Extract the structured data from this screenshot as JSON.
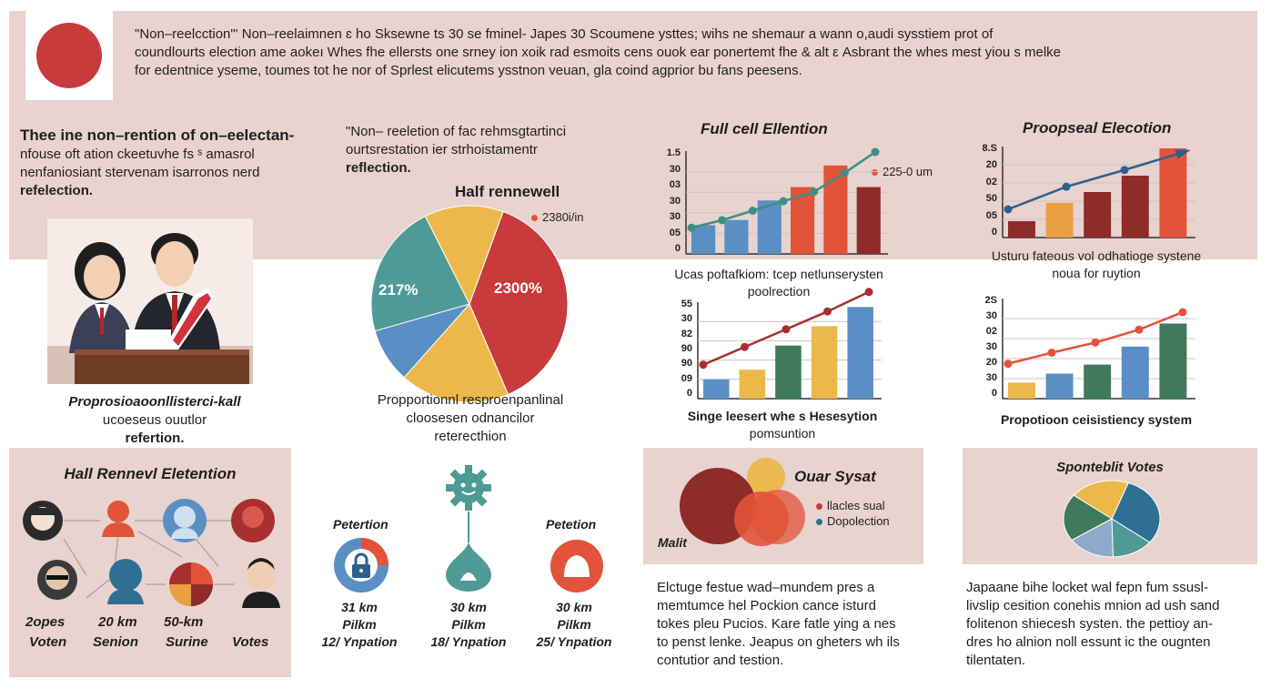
{
  "colors": {
    "red": "#c83a3c",
    "darkred": "#8e2c2a",
    "orange": "#e2533a",
    "yellow": "#ecb84a",
    "blue": "#5a8fc5",
    "teal": "#4f9a94",
    "green": "#3f7a5a",
    "navy": "#2e5f8f",
    "band": "#e8d3cf"
  },
  "header": {
    "flag_icon": "japan-flag-icon",
    "text_line1": "\"Non–reelcction\"' Non–reelaimnen ɛ ho Sksewne ts 30 se fminel- Japes 30 Scoumene ysttes; wihs ne shemaur a wann o,audi sysstiem prot of",
    "text_line2": "coundlourts election ame aokeı Whes fhe ellersts one srney ion xoik rad esmoits cens ouok ear ponertemt fhe & alt ε Asbrant the whes mest yiou s melke",
    "text_line3": "for edentnice yseme, toumes tot he nor of Sprlest elicutems ysstnon veuan, gla coind agprior bu fans peesens."
  },
  "intro": {
    "heading": "Thee ine non–rention of on–eelectan-",
    "line2": "nfouse oft ation ckeetuvhe fs ˢ amasrol",
    "line3": "nenfaniosiant stervenam isarronos nerd",
    "line4": "refelection."
  },
  "illustration_caption": [
    "Proprosioaoonllisterci-kall",
    "ucoeseus ouutlor",
    "refertion."
  ],
  "pie_section": {
    "intro": [
      "\"Non– reeletion of fac rehmsgtartinci",
      "ourtsrestation ier strhoistamentr",
      "reflection."
    ],
    "title": "Half rennewell",
    "legend": "2380i/in",
    "label_left": "217%",
    "label_right": "2300%",
    "chart_data": {
      "type": "pie",
      "slices": [
        {
          "label": "217%",
          "value": 38,
          "color": "#c83a3c"
        },
        {
          "label": "",
          "value": 18,
          "color": "#ecb84a"
        },
        {
          "label": "",
          "value": 9,
          "color": "#5a8fc5"
        },
        {
          "label": "2300%",
          "value": 22,
          "color": "#4f9a94"
        },
        {
          "label": "",
          "value": 13,
          "color": "#ecb84a"
        }
      ]
    },
    "caption": [
      "Propportionnl resproenpanlinal",
      "cloosesen odnancilor",
      "reterecthion"
    ]
  },
  "charts": [
    {
      "id": "full-cell",
      "title": "Full cell Ellention",
      "legend": "225-0 um",
      "ticks": [
        "1.5",
        "30",
        "03",
        "30",
        "30",
        "05",
        "0"
      ],
      "chart_data": {
        "type": "bar",
        "values": [
          28,
          33,
          52,
          65,
          86,
          65
        ],
        "colors": [
          "#5a8fc5",
          "#5a8fc5",
          "#5a8fc5",
          "#e2533a",
          "#e2533a",
          "#8e2c2a"
        ],
        "line": [
          20,
          28,
          38,
          48,
          58,
          78,
          100
        ],
        "line_color": "#3e8f83"
      },
      "caption": [
        "Ucas poftafkiom: tcep netlunserysten",
        "poolrection"
      ]
    },
    {
      "id": "proposal",
      "title": "Proopseal Elecotion",
      "ticks": [
        "8.S",
        "20",
        "02",
        "50",
        "05",
        "0"
      ],
      "chart_data": {
        "type": "bar",
        "values": [
          18,
          38,
          50,
          68,
          98
        ],
        "colors": [
          "#8e2c2a",
          "#e8a043",
          "#8e2c2a",
          "#8e2c2a",
          "#e2533a"
        ],
        "line": [
          25,
          52,
          72,
          93
        ],
        "line_color": "#2e5f8f",
        "arrow": true
      },
      "caption": [
        "Usturu fateous vol odhatioge systene",
        "noua for ruytion"
      ]
    },
    {
      "id": "single",
      "title": "",
      "ticks": [
        "55",
        "30",
        "82",
        "90",
        "90",
        "09",
        "0"
      ],
      "chart_data": {
        "type": "bar",
        "values": [
          20,
          30,
          55,
          75,
          95
        ],
        "colors": [
          "#5a8fc5",
          "#ecb84a",
          "#3f7a5a",
          "#ecb84a",
          "#5a8fc5"
        ],
        "line": [
          30,
          50,
          70,
          90,
          112
        ],
        "line_color": "#a82f2f"
      },
      "caption": [
        "Singe leesert whe s Hesesytion",
        "pomsuntion"
      ]
    },
    {
      "id": "proportion",
      "title": "",
      "ticks": [
        "2S",
        "30",
        "02",
        "30",
        "20",
        "30",
        "0"
      ],
      "chart_data": {
        "type": "bar",
        "values": [
          16,
          25,
          34,
          52,
          75
        ],
        "colors": [
          "#ecb84a",
          "#5a8fc5",
          "#3f7a5a",
          "#5a8fc5",
          "#3f7a5a"
        ],
        "line": [
          30,
          42,
          53,
          67,
          86
        ],
        "line_color": "#e2533a"
      },
      "caption": [
        "Propotioon ceisistiency system"
      ]
    }
  ],
  "hall": {
    "title": "Hall Rennevl Eletention",
    "people": [
      {
        "icon": "person-icon",
        "color": "#2b2b2b",
        "bg": "#2b2b2b"
      },
      {
        "icon": "person-icon",
        "color": "#e2533a",
        "bg": "none"
      },
      {
        "icon": "person-icon",
        "color": "#5a8fc5",
        "bg": "#5a8fc5"
      },
      {
        "icon": "person-icon",
        "color": "#a82f2f",
        "bg": "#a82f2f"
      }
    ],
    "labels": [
      "2opes",
      "20 km",
      "50-km",
      "Votes"
    ],
    "labels2": [
      "Voten",
      "Senion",
      "Surine",
      ""
    ]
  },
  "icons_section": {
    "label_left": "Petertion",
    "label_right": "Petetion",
    "columns": [
      {
        "l1": "31 km",
        "l2": "Pilkm",
        "l3": "12/ Ynpation"
      },
      {
        "l1": "30 km",
        "l2": "Pilkm",
        "l3": "18/ Ynpation"
      },
      {
        "l1": "30 km",
        "l2": "Pilkm",
        "l3": "25/ Ynpation"
      }
    ]
  },
  "venn": {
    "title": "Ouar Sysat",
    "legend1": "llacles sual",
    "legend2": "Dopolection",
    "corner_label": "Malit",
    "text": [
      "Elctuge festue wad–mundem pres a",
      "memtumce hel Pockion cance isturd",
      "tokes pleu Pucios. Kare fatle ying a nes",
      "to penst lenke. Jeapus on gheters wh ils",
      "contutior and testion."
    ]
  },
  "votes": {
    "title": "Sponteblit Votes",
    "chart_data": {
      "type": "pie",
      "slices": [
        {
          "value": 30,
          "color": "#2e6f93"
        },
        {
          "value": 14,
          "color": "#4f9a94"
        },
        {
          "value": 16,
          "color": "#8fa9c9"
        },
        {
          "value": 20,
          "color": "#3f7a5a"
        },
        {
          "value": 20,
          "color": "#ecb84a"
        }
      ]
    },
    "text": [
      "Japaane bihe locket wal fepn fum ssusl-",
      "livslip cesition conehis mnion ad ush sand",
      "folitenon shiecesh systen. the pettioy an-",
      "dres ho alnion noll essunt ic the ougnten",
      "tilentaten."
    ]
  }
}
